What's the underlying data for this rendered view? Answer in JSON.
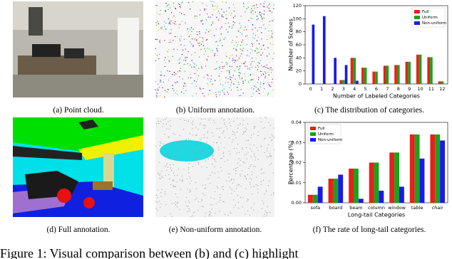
{
  "chart_data": [
    {
      "type": "bar",
      "xlabel": "Number of Labeled Categories",
      "ylabel": "Number of Scenes",
      "categories": [
        "0",
        "1",
        "2",
        "3",
        "4",
        "5",
        "6",
        "7",
        "8",
        "9",
        "10",
        "11",
        "12"
      ],
      "series": [
        {
          "name": "Full",
          "color": "#e8201a",
          "values": [
            0,
            0,
            0,
            6,
            40,
            25,
            19,
            28,
            29,
            34,
            45,
            41,
            4
          ]
        },
        {
          "name": "Uniform",
          "color": "#1aa21a",
          "values": [
            0,
            0,
            0,
            6,
            40,
            25,
            19,
            28,
            29,
            34,
            45,
            41,
            4
          ]
        },
        {
          "name": "Non-uniform",
          "color": "#1a1ae8",
          "values": [
            91,
            104,
            40,
            29,
            5,
            0,
            0,
            0,
            0,
            0,
            0,
            0,
            0
          ]
        }
      ],
      "ylim": [
        0,
        120
      ],
      "yticks": [
        0,
        20,
        40,
        60,
        80,
        100,
        120
      ],
      "legend": "upper right"
    },
    {
      "type": "bar",
      "xlabel": "Long-tail Categories",
      "ylabel": "Percentage (%)",
      "categories": [
        "sofa",
        "board",
        "beam",
        "column",
        "window",
        "table",
        "chair"
      ],
      "series": [
        {
          "name": "Full",
          "color": "#e8201a",
          "values": [
            0.004,
            0.012,
            0.017,
            0.02,
            0.025,
            0.034,
            0.034
          ]
        },
        {
          "name": "Uniform",
          "color": "#1aa21a",
          "values": [
            0.004,
            0.012,
            0.017,
            0.02,
            0.025,
            0.034,
            0.034
          ]
        },
        {
          "name": "Non-uniform",
          "color": "#1a1ae8",
          "values": [
            0.008,
            0.014,
            0.002,
            0.006,
            0.008,
            0.022,
            0.031
          ]
        }
      ],
      "ylim": [
        0,
        0.04
      ],
      "yticks": [
        {
          "value": 0,
          "label": "0.00"
        },
        {
          "value": 0.01,
          "label": "0.01"
        },
        {
          "value": 0.02,
          "label": "0.02"
        },
        {
          "value": 0.03,
          "label": "0.03"
        },
        {
          "value": 0.04,
          "label": "0.04"
        }
      ],
      "legend": "upper left"
    }
  ],
  "captions": [
    "(a) Point cloud.",
    "(b) Uniform annotation.",
    "(c) The distribution of categories.",
    "(d) Full annotation.",
    "(e) Non-uniform annotation.",
    "(f) The rate of long-tail categories."
  ],
  "figure_caption": "Figure 1: Visual comparison between (b) and (c) highlight"
}
